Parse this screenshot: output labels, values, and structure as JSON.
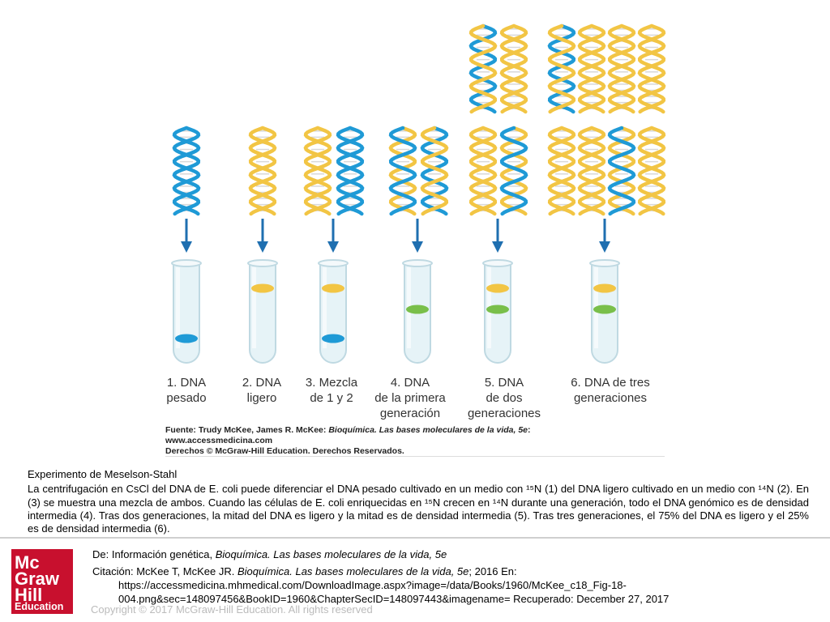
{
  "figure": {
    "labels": [
      "1. DNA\npesado",
      "2. DNA\nligero",
      "3. Mezcla\nde 1 y 2",
      "4. DNA\nde la primera\ngeneración",
      "5. DNA\nde dos\ngeneraciones",
      "6. DNA de tres\ngeneraciones"
    ],
    "source_line1_prefix": "Fuente: Trudy McKee, James R. McKee: ",
    "source_line1_italic": "Bioquímica. Las bases moleculares de la vida, 5e",
    "source_line1_suffix": ":",
    "source_line2": "www.accessmedicina.com",
    "source_line3": "Derechos © McGraw-Hill Education. Derechos Reservados.",
    "colors": {
      "heavy": "#1f9ad6",
      "light": "#f2c544",
      "hybrid": "#79bf4a",
      "arrow": "#1f6fb0",
      "tube": "#e6f3f7"
    }
  },
  "caption": {
    "title": "Experimento de Meselson-Stahl",
    "body": " La centrifugación en CsCl del DNA de E. coli puede diferenciar el DNA pesado cultivado en un medio con ¹⁵N (1) del DNA ligero cultivado en un medio con ¹⁴N (2). En (3) se muestra una mezcla de ambos. Cuando las células de E. coli enriquecidas en ¹⁵N crecen en ¹⁴N durante una generación, todo el DNA genómico es de densidad intermedia (4). Tras dos generaciones, la mitad del DNA es ligero y la mitad es de densidad intermedia (5). Tras tres generaciones, el 75% del DNA es ligero y el 25% es de densidad intermedia (6)."
  },
  "logo": {
    "line1": "Mc",
    "line2": "Graw",
    "line3": "Hill",
    "line4": "Education"
  },
  "citation": {
    "from_prefix": "De: Información genética, ",
    "from_italic": "Bioquímica. Las bases moleculares de la vida, 5e",
    "cite_prefix": "Citación: McKee T, McKee JR. ",
    "cite_italic": "Bioquímica. Las bases moleculares de la vida, 5e",
    "cite_suffix": "; 2016 En:",
    "url_line1": "https://accessmedicina.mhmedical.com/DownloadImage.aspx?image=/data/Books/1960/McKee_c18_Fig-18-",
    "url_line2": "004.png&sec=148097456&BookID=1960&ChapterSecID=148097443&imagename= Recuperado: December 27, 2017"
  },
  "copyright": "Copyright © 2017 McGraw-Hill Education. All rights reserved"
}
